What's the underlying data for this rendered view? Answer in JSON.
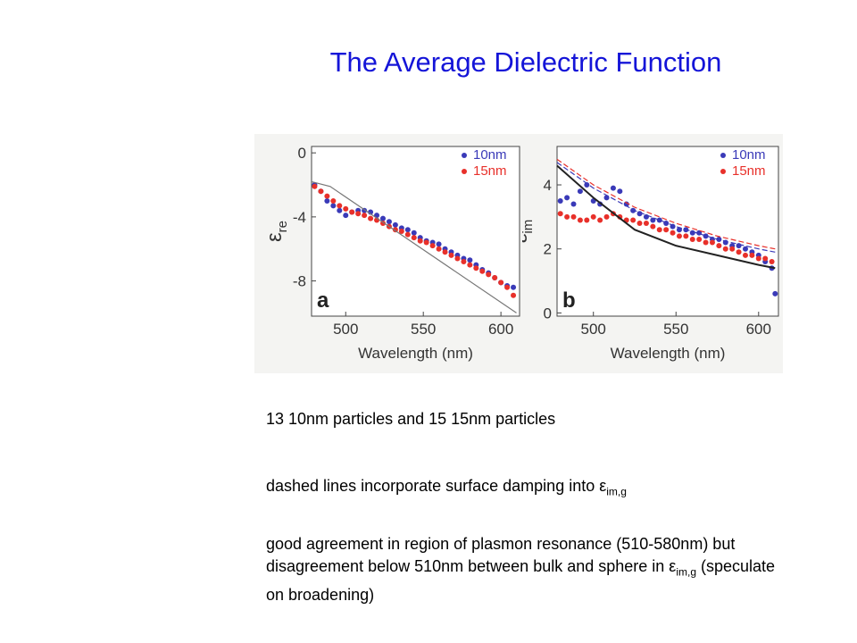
{
  "slide": {
    "title": "The Average Dielectric Function",
    "bullets": [
      {
        "text": "13 10nm particles and 15 15nm particles"
      },
      {
        "text": "dashed lines incorporate surface damping into ε",
        "sub": "im,g"
      },
      {
        "text_before": "good agreement in region of plasmon resonance (510-580nm) but disagreement below 510nm between bulk and sphere in ε",
        "sub": "im,g",
        "text_after": " (speculate on broadening)"
      }
    ]
  },
  "colors": {
    "blue": "#3a3ab8",
    "red": "#e8302a",
    "title": "#1414d8",
    "bulk": "#222222",
    "dashed": "#e8302a"
  },
  "chart_data": [
    {
      "type": "scatter",
      "panel_label": "a",
      "xlabel": "Wavelength (nm)",
      "ylabel": "ε",
      "ylabel_sub": "re",
      "xlim": [
        478,
        612
      ],
      "ylim": [
        -10.2,
        0.4
      ],
      "xticks": [
        500,
        550,
        600
      ],
      "yticks": [
        0,
        -4,
        -8
      ],
      "legend": {
        "position": "top-right",
        "entries": [
          "10nm",
          "15nm"
        ]
      },
      "series": [
        {
          "name": "10nm",
          "color": "#3a3ab8",
          "x": [
            480,
            484,
            488,
            492,
            496,
            500,
            504,
            508,
            512,
            516,
            520,
            524,
            528,
            532,
            536,
            540,
            544,
            548,
            552,
            556,
            560,
            564,
            568,
            572,
            576,
            580,
            584,
            588,
            592,
            596,
            600,
            604,
            608
          ],
          "y": [
            -2.0,
            -2.4,
            -3.0,
            -3.3,
            -3.6,
            -3.9,
            -3.7,
            -3.6,
            -3.6,
            -3.7,
            -3.9,
            -4.1,
            -4.3,
            -4.5,
            -4.7,
            -4.8,
            -5.0,
            -5.3,
            -5.5,
            -5.6,
            -5.7,
            -6.0,
            -6.2,
            -6.4,
            -6.6,
            -6.7,
            -7.0,
            -7.3,
            -7.5,
            -7.8,
            -8.1,
            -8.3,
            -8.4
          ]
        },
        {
          "name": "15nm",
          "color": "#e8302a",
          "x": [
            480,
            484,
            488,
            492,
            496,
            500,
            504,
            508,
            512,
            516,
            520,
            524,
            528,
            532,
            536,
            540,
            544,
            548,
            552,
            556,
            560,
            564,
            568,
            572,
            576,
            580,
            584,
            588,
            592,
            596,
            600,
            604,
            608
          ],
          "y": [
            -2.1,
            -2.4,
            -2.7,
            -3.0,
            -3.3,
            -3.5,
            -3.7,
            -3.8,
            -3.9,
            -4.1,
            -4.2,
            -4.4,
            -4.6,
            -4.8,
            -4.9,
            -5.1,
            -5.3,
            -5.5,
            -5.6,
            -5.8,
            -6.0,
            -6.2,
            -6.4,
            -6.6,
            -6.8,
            -7.0,
            -7.2,
            -7.4,
            -7.6,
            -7.8,
            -8.1,
            -8.4,
            -8.9
          ]
        },
        {
          "name": "",
          "style": "line",
          "color": "#777777",
          "x": [
            478,
            490,
            610
          ],
          "y": [
            -1.8,
            -2.1,
            -10.0
          ]
        }
      ]
    },
    {
      "type": "scatter",
      "panel_label": "b",
      "xlabel": "Wavelength (nm)",
      "ylabel": "ε",
      "ylabel_sub": "im",
      "xlim": [
        478,
        612
      ],
      "ylim": [
        -0.1,
        5.2
      ],
      "xticks": [
        500,
        550,
        600
      ],
      "yticks": [
        0,
        2,
        4
      ],
      "legend": {
        "position": "top-right",
        "entries": [
          "10nm",
          "15nm"
        ]
      },
      "series": [
        {
          "name": "10nm",
          "color": "#3a3ab8",
          "x": [
            480,
            484,
            488,
            492,
            496,
            500,
            504,
            508,
            512,
            516,
            520,
            524,
            528,
            532,
            536,
            540,
            544,
            548,
            552,
            556,
            560,
            564,
            568,
            572,
            576,
            580,
            584,
            588,
            592,
            596,
            600,
            604,
            608,
            610
          ],
          "y": [
            3.5,
            3.6,
            3.4,
            3.8,
            4.0,
            3.5,
            3.4,
            3.6,
            3.9,
            3.8,
            3.4,
            3.2,
            3.1,
            3.0,
            2.9,
            2.9,
            2.8,
            2.7,
            2.6,
            2.6,
            2.5,
            2.5,
            2.4,
            2.3,
            2.3,
            2.2,
            2.1,
            2.1,
            2.0,
            1.9,
            1.8,
            1.6,
            1.4,
            0.6
          ]
        },
        {
          "name": "15nm",
          "color": "#e8302a",
          "x": [
            480,
            484,
            488,
            492,
            496,
            500,
            504,
            508,
            512,
            516,
            520,
            524,
            528,
            532,
            536,
            540,
            544,
            548,
            552,
            556,
            560,
            564,
            568,
            572,
            576,
            580,
            584,
            588,
            592,
            596,
            600,
            604,
            608
          ],
          "y": [
            3.1,
            3.0,
            3.0,
            2.9,
            2.9,
            3.0,
            2.9,
            3.0,
            3.1,
            3.0,
            2.9,
            2.9,
            2.8,
            2.8,
            2.7,
            2.6,
            2.6,
            2.5,
            2.4,
            2.4,
            2.3,
            2.3,
            2.2,
            2.2,
            2.1,
            2.0,
            2.0,
            1.9,
            1.8,
            1.8,
            1.7,
            1.7,
            1.6
          ]
        },
        {
          "name": "",
          "style": "line",
          "color": "#222222",
          "x": [
            478,
            500,
            520,
            525,
            550,
            575,
            600,
            610
          ],
          "y": [
            4.6,
            3.6,
            2.8,
            2.6,
            2.1,
            1.8,
            1.5,
            1.4
          ]
        },
        {
          "name": "",
          "style": "dashed",
          "color": "#e8302a",
          "x": [
            478,
            500,
            525,
            550,
            575,
            600,
            610
          ],
          "y": [
            4.8,
            4.0,
            3.3,
            2.8,
            2.4,
            2.1,
            2.0
          ]
        },
        {
          "name": "",
          "style": "dashed",
          "color": "#3a3ab8",
          "x": [
            478,
            500,
            525,
            550,
            575,
            600,
            610
          ],
          "y": [
            4.7,
            3.9,
            3.2,
            2.7,
            2.3,
            2.0,
            1.9
          ]
        }
      ]
    }
  ]
}
